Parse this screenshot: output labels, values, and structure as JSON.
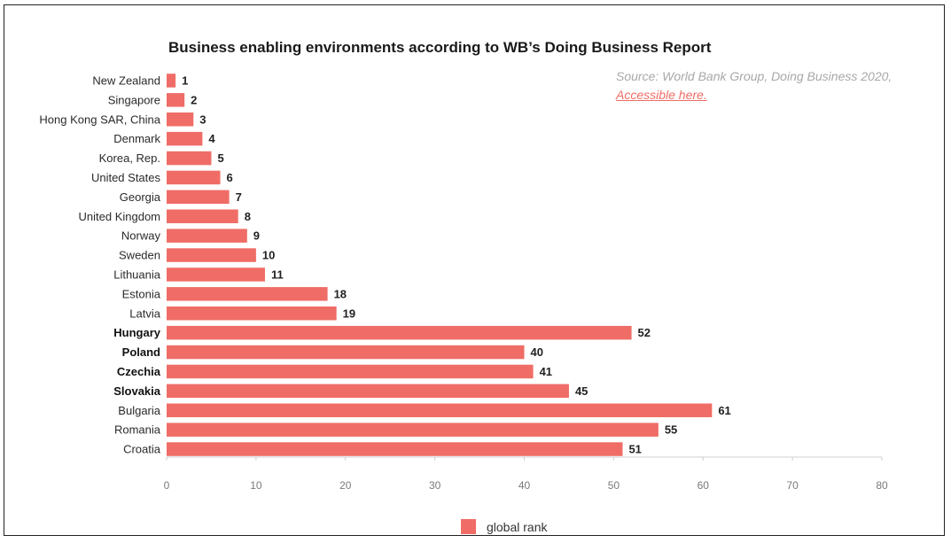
{
  "source": {
    "text": "Source: World Bank Group, Doing Business 2020,",
    "link": "Accessible here."
  },
  "colors": {
    "bar": "#ef6d66",
    "axis": "#cfcfcf"
  },
  "chart_data": {
    "type": "bar",
    "orientation": "horizontal",
    "title": "Business enabling environments according to WB’s Doing Business Report",
    "xlabel": "",
    "ylabel": "",
    "xlim": [
      0,
      80
    ],
    "xticks": [
      0,
      10,
      20,
      30,
      40,
      50,
      60,
      70,
      80
    ],
    "grid": false,
    "legend_position": "bottom",
    "categories": [
      "New Zealand",
      "Singapore",
      "Hong Kong SAR, China",
      "Denmark",
      "Korea, Rep.",
      "United States",
      "Georgia",
      "United Kingdom",
      "Norway",
      "Sweden",
      "Lithuania",
      "Estonia",
      "Latvia",
      "Hungary",
      "Poland",
      "Czechia",
      "Slovakia",
      "Bulgaria",
      "Romania",
      "Croatia"
    ],
    "bold_categories": [
      "Hungary",
      "Poland",
      "Czechia",
      "Slovakia"
    ],
    "series": [
      {
        "name": "global rank",
        "values": [
          1,
          2,
          3,
          4,
          5,
          6,
          7,
          8,
          9,
          10,
          11,
          18,
          19,
          52,
          40,
          41,
          45,
          61,
          55,
          51
        ]
      }
    ]
  }
}
